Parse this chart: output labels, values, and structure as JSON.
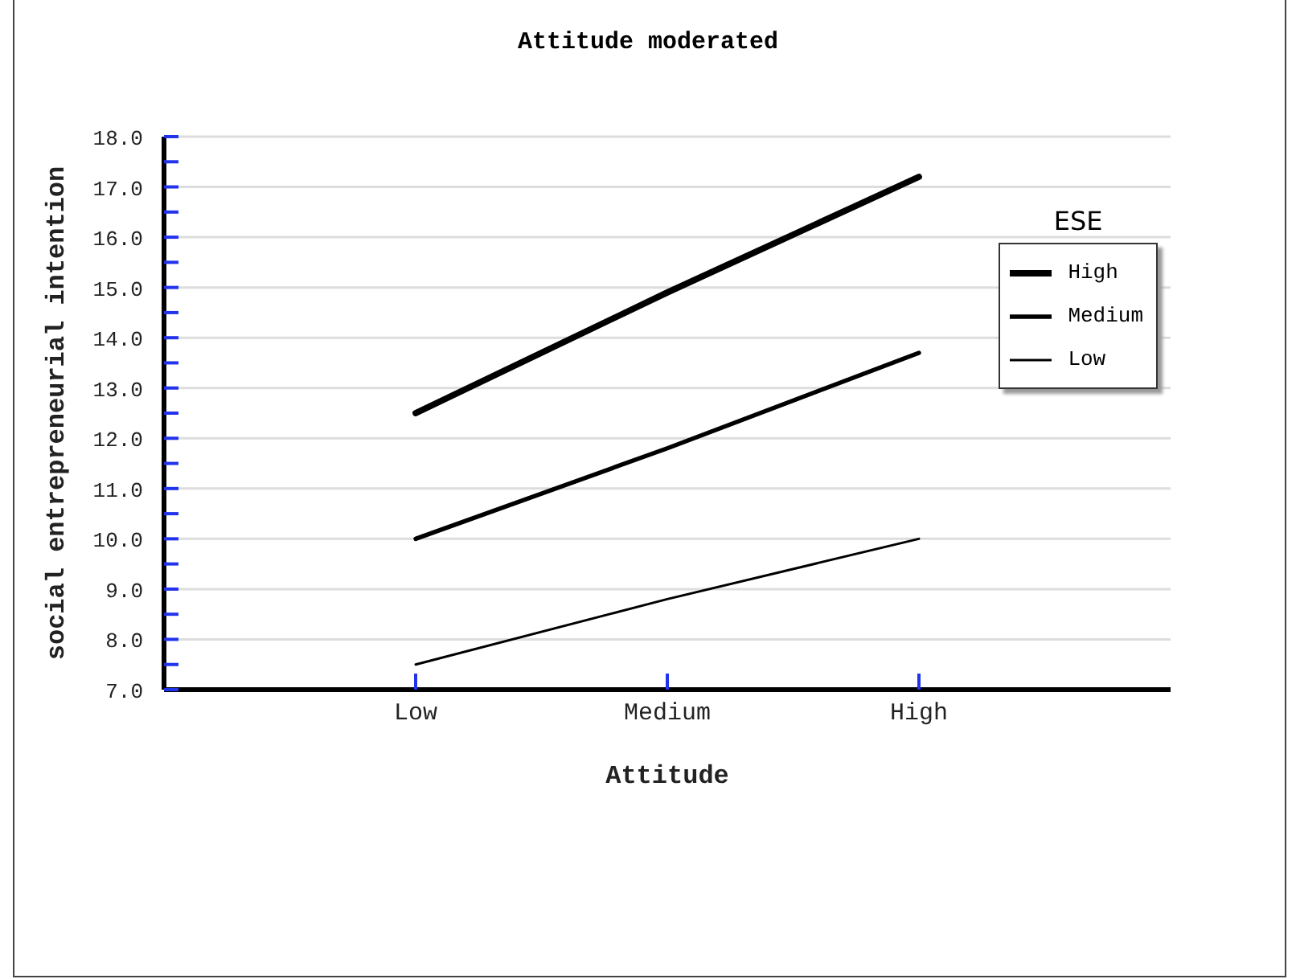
{
  "chart_data": {
    "type": "line",
    "title": "Attitude moderated",
    "xlabel": "Attitude",
    "ylabel": "social entrepreneurial intention",
    "legend_title": "ESE",
    "categories": [
      "Low",
      "Medium",
      "High"
    ],
    "series": [
      {
        "name": "High",
        "color": "#000000",
        "values": [
          12.5,
          14.9,
          17.2
        ]
      },
      {
        "name": "Medium",
        "color": "#000000",
        "values": [
          10.0,
          11.8,
          13.7
        ]
      },
      {
        "name": "Low",
        "color": "#000000",
        "values": [
          7.5,
          8.8,
          10.0
        ]
      }
    ],
    "ylim": [
      7,
      18
    ],
    "yticks": [
      {
        "value": 7,
        "label": "7.0"
      },
      {
        "value": 7.5,
        "label": null
      },
      {
        "value": 8,
        "label": "8.0"
      },
      {
        "value": 8.5,
        "label": null
      },
      {
        "value": 9,
        "label": "9.0"
      },
      {
        "value": 9.5,
        "label": null
      },
      {
        "value": 10,
        "label": "10.0"
      },
      {
        "value": 10.5,
        "label": null
      },
      {
        "value": 11,
        "label": "11.0"
      },
      {
        "value": 11.5,
        "label": null
      },
      {
        "value": 12,
        "label": "12.0"
      },
      {
        "value": 12.5,
        "label": null
      },
      {
        "value": 13,
        "label": "13.0"
      },
      {
        "value": 13.5,
        "label": null
      },
      {
        "value": 14,
        "label": "14.0"
      },
      {
        "value": 14.5,
        "label": null
      },
      {
        "value": 15,
        "label": "15.0"
      },
      {
        "value": 15.5,
        "label": null
      },
      {
        "value": 16,
        "label": "16.0"
      },
      {
        "value": 16.5,
        "label": null
      },
      {
        "value": 17,
        "label": "17.0"
      },
      {
        "value": 17.5,
        "label": null
      },
      {
        "value": 18,
        "label": "18.0"
      }
    ],
    "grid": "y",
    "legend": "top right",
    "marker": "none",
    "line_style": "solid"
  }
}
